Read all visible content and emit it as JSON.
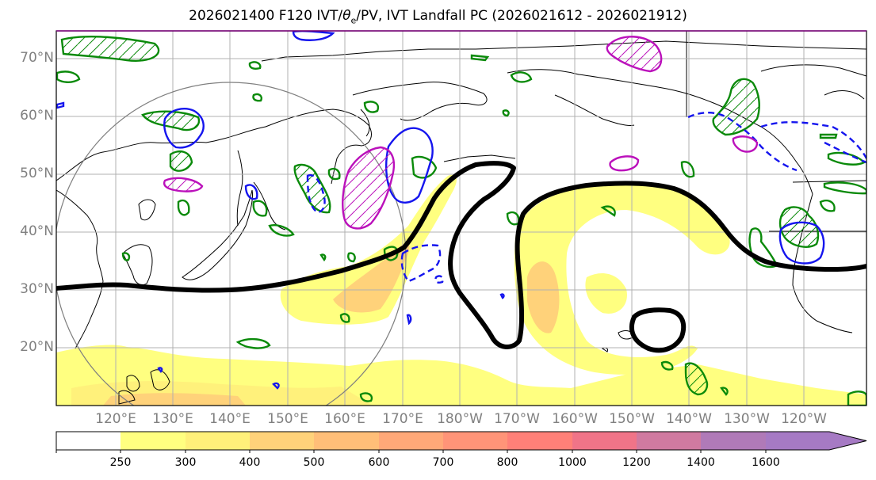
{
  "title": "2026021400 F120 IVT/θe/PV, IVT Landfall PC (2026021612 - 2026021912)",
  "title_parts": {
    "prefix": "2026021400 F120 IVT/",
    "theta": "θ",
    "sub": "e",
    "suffix": "/PV, IVT Landfall PC (2026021612 - 2026021912)"
  },
  "map": {
    "lat_labels": [
      "70°N",
      "60°N",
      "50°N",
      "40°N",
      "30°N",
      "20°N"
    ],
    "lon_labels": [
      "120°E",
      "130°E",
      "140°E",
      "150°E",
      "160°E",
      "170°E",
      "180°W",
      "170°W",
      "160°W",
      "150°W",
      "140°W",
      "130°W",
      "120°W"
    ],
    "colors": {
      "land_outline": "#000000",
      "pv_positive": "#0a8a0a",
      "pv_negative": "#1515ee",
      "theta_e": "#bb11bb",
      "landfall_contour": "#000000",
      "range_circle": "#7f7f7f",
      "gridline": "#b0b0b0"
    }
  },
  "colorbar": {
    "levels": [
      "250",
      "300",
      "400",
      "500",
      "600",
      "700",
      "800",
      "1000",
      "1200",
      "1400",
      "1600"
    ],
    "colors": [
      "#ffffff",
      "#ffff80",
      "#fff07a",
      "#ffd27a",
      "#ffbe78",
      "#ffa878",
      "#ff9478",
      "#ff8078",
      "#f07488",
      "#d07aa0",
      "#b07ab8",
      "#a67ac4"
    ]
  }
}
